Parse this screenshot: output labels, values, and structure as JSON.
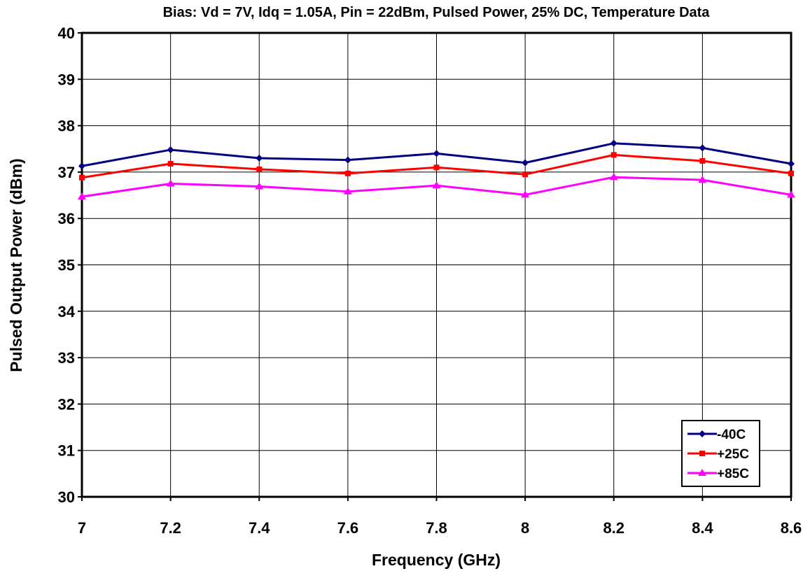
{
  "chart_data": {
    "type": "line",
    "title": "Bias:  Vd = 7V, Idq = 1.05A, Pin = 22dBm, Pulsed Power, 25% DC, Temperature Data",
    "xlabel": "Frequency (GHz)",
    "ylabel": "Pulsed Output Power (dBm)",
    "xlim": [
      7,
      8.6
    ],
    "ylim": [
      30,
      40
    ],
    "x_ticks": [
      "7",
      "7.2",
      "7.4",
      "7.6",
      "7.8",
      "8",
      "8.2",
      "8.4",
      "8.6"
    ],
    "y_ticks": [
      "30",
      "31",
      "32",
      "33",
      "34",
      "35",
      "36",
      "37",
      "38",
      "39",
      "40"
    ],
    "grid": true,
    "legend_position": "bottom-right",
    "x": [
      7,
      7.2,
      7.4,
      7.6,
      7.8,
      8,
      8.2,
      8.4,
      8.6
    ],
    "series": [
      {
        "name": "-40C",
        "color": "#000080",
        "marker": "diamond",
        "values": [
          37.13,
          37.48,
          37.3,
          37.26,
          37.4,
          37.2,
          37.62,
          37.52,
          37.18
        ]
      },
      {
        "name": "+25C",
        "color": "#ff0000",
        "marker": "square",
        "values": [
          36.88,
          37.18,
          37.06,
          36.97,
          37.1,
          36.95,
          37.37,
          37.24,
          36.97
        ]
      },
      {
        "name": "+85C",
        "color": "#ff00ff",
        "marker": "triangle",
        "values": [
          36.47,
          36.75,
          36.69,
          36.58,
          36.71,
          36.51,
          36.89,
          36.83,
          36.51
        ]
      }
    ]
  }
}
